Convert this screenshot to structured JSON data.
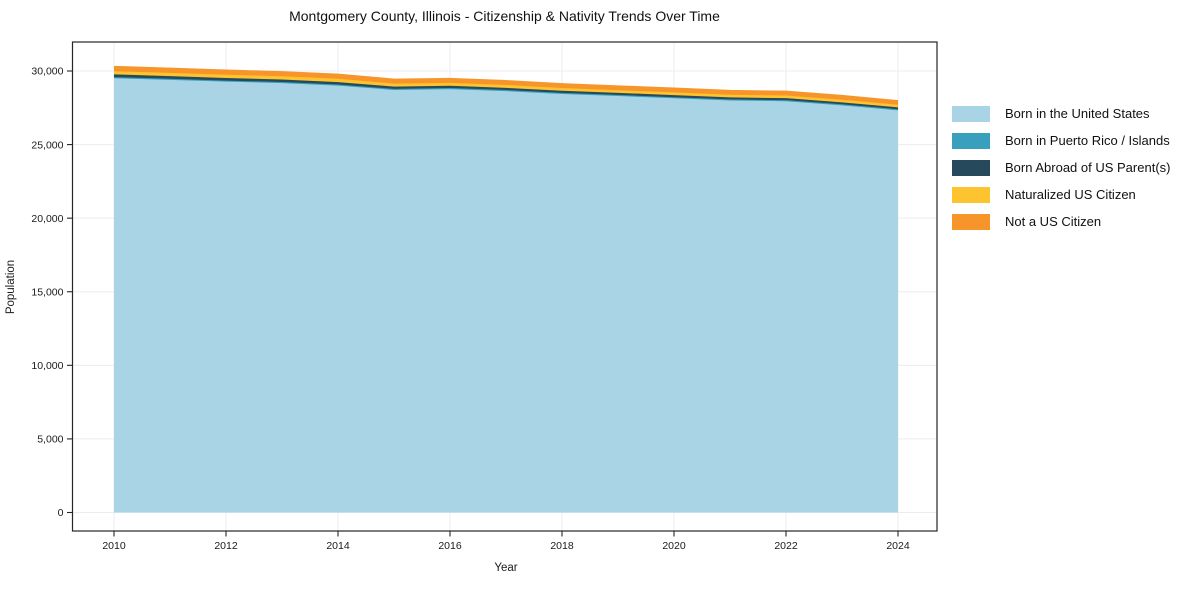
{
  "title": "Montgomery County, Illinois - Citizenship & Nativity Trends Over Time",
  "x_axis": {
    "label": "Year",
    "ticks": [
      2010,
      2012,
      2014,
      2016,
      2018,
      2020,
      2022,
      2024
    ],
    "tick_labels": [
      "2010",
      "2012",
      "2014",
      "2016",
      "2018",
      "2020",
      "2022",
      "2024"
    ]
  },
  "y_axis": {
    "label": "Population",
    "ticks": [
      0,
      5000,
      10000,
      15000,
      20000,
      25000,
      30000
    ],
    "tick_labels": [
      "0",
      "5,000",
      "10,000",
      "15,000",
      "20,000",
      "25,000",
      "30,000"
    ]
  },
  "legend": {
    "items": [
      {
        "label": "Born in the United States",
        "color": "#a8d4e6"
      },
      {
        "label": "Born in Puerto Rico / Islands",
        "color": "#389fbc"
      },
      {
        "label": "Born Abroad of US Parent(s)",
        "color": "#26495c"
      },
      {
        "label": "Naturalized US Citizen",
        "color": "#fdc42f"
      },
      {
        "label": "Not a US Citizen",
        "color": "#f7952b"
      }
    ],
    "position": "outside-right"
  },
  "colors": {
    "grid": "#ececec",
    "frame": "#262626",
    "text": "#1a1a1a"
  },
  "chart_data": {
    "type": "area",
    "stacked": true,
    "title": "Montgomery County, Illinois - Citizenship & Nativity Trends Over Time",
    "xlabel": "Year",
    "ylabel": "Population",
    "x": [
      2010,
      2011,
      2012,
      2013,
      2014,
      2015,
      2016,
      2017,
      2018,
      2019,
      2020,
      2021,
      2022,
      2023,
      2024
    ],
    "series": [
      {
        "name": "Born in the United States",
        "color": "#a8d4e6",
        "values": [
          29560,
          29450,
          29330,
          29230,
          29060,
          28770,
          28830,
          28690,
          28500,
          28360,
          28210,
          28060,
          28010,
          27730,
          27390
        ]
      },
      {
        "name": "Born in Puerto Rico / Islands",
        "color": "#389fbc",
        "values": [
          25,
          25,
          20,
          20,
          20,
          15,
          15,
          15,
          15,
          15,
          10,
          10,
          10,
          10,
          10
        ]
      },
      {
        "name": "Born Abroad of US Parent(s)",
        "color": "#26495c",
        "values": [
          185,
          180,
          175,
          170,
          165,
          155,
          150,
          150,
          145,
          140,
          140,
          135,
          135,
          130,
          130
        ]
      },
      {
        "name": "Naturalized US Citizen",
        "color": "#fdc42f",
        "values": [
          215,
          215,
          220,
          225,
          230,
          200,
          195,
          190,
          185,
          180,
          185,
          180,
          180,
          180,
          175
        ]
      },
      {
        "name": "Not a US Citizen",
        "color": "#f7952b",
        "values": [
          290,
          285,
          280,
          275,
          275,
          270,
          270,
          265,
          260,
          255,
          255,
          255,
          255,
          250,
          245
        ]
      }
    ],
    "xlim": [
      2009.25,
      2024.7
    ],
    "ylim": [
      -1300,
      31960
    ],
    "grid": true,
    "legend_position": "outside-right"
  }
}
